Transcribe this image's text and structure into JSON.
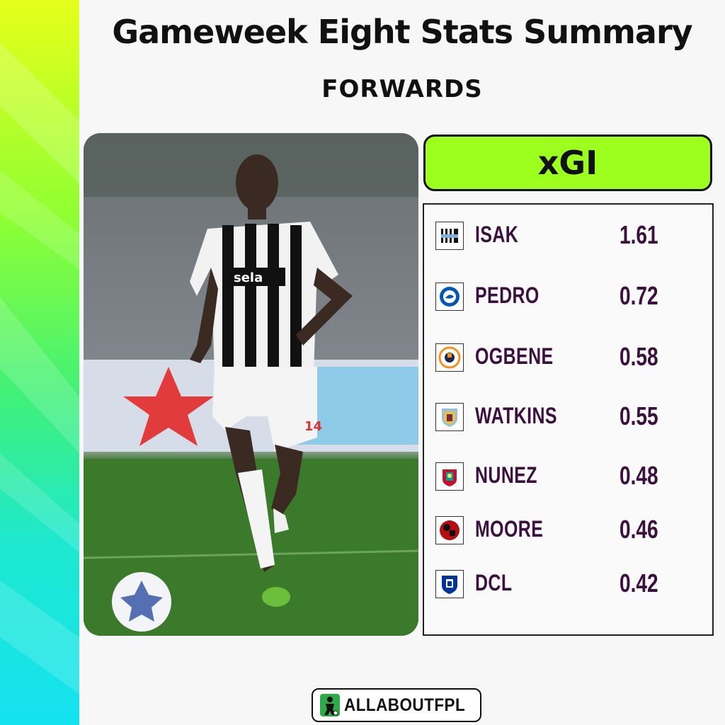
{
  "header": {
    "title": "Gameweek Eight Stats Summary",
    "subtitle": "FORWARDS"
  },
  "photo": {
    "icon": "player-photo",
    "shirt_sponsor": "sela",
    "shirt_number": "14"
  },
  "metric": {
    "label": "xGI",
    "color": "#9cff1e"
  },
  "players": [
    {
      "name": "ISAK",
      "value": "1.61",
      "club_icon": "newcastle-badge-icon"
    },
    {
      "name": "PEDRO",
      "value": "0.72",
      "club_icon": "brighton-badge-icon"
    },
    {
      "name": "OGBENE",
      "value": "0.58",
      "club_icon": "luton-badge-icon"
    },
    {
      "name": "WATKINS",
      "value": "0.55",
      "club_icon": "aston-villa-badge-icon"
    },
    {
      "name": "NUNEZ",
      "value": "0.48",
      "club_icon": "liverpool-badge-icon"
    },
    {
      "name": "MOORE",
      "value": "0.46",
      "club_icon": "bournemouth-badge-icon"
    },
    {
      "name": "DCL",
      "value": "0.42",
      "club_icon": "everton-badge-icon"
    }
  ],
  "footer": {
    "brand": "ALLABOUTFPL"
  },
  "colors": {
    "text_purple": "#3b0f3e",
    "accent_green": "#9cff1e"
  }
}
